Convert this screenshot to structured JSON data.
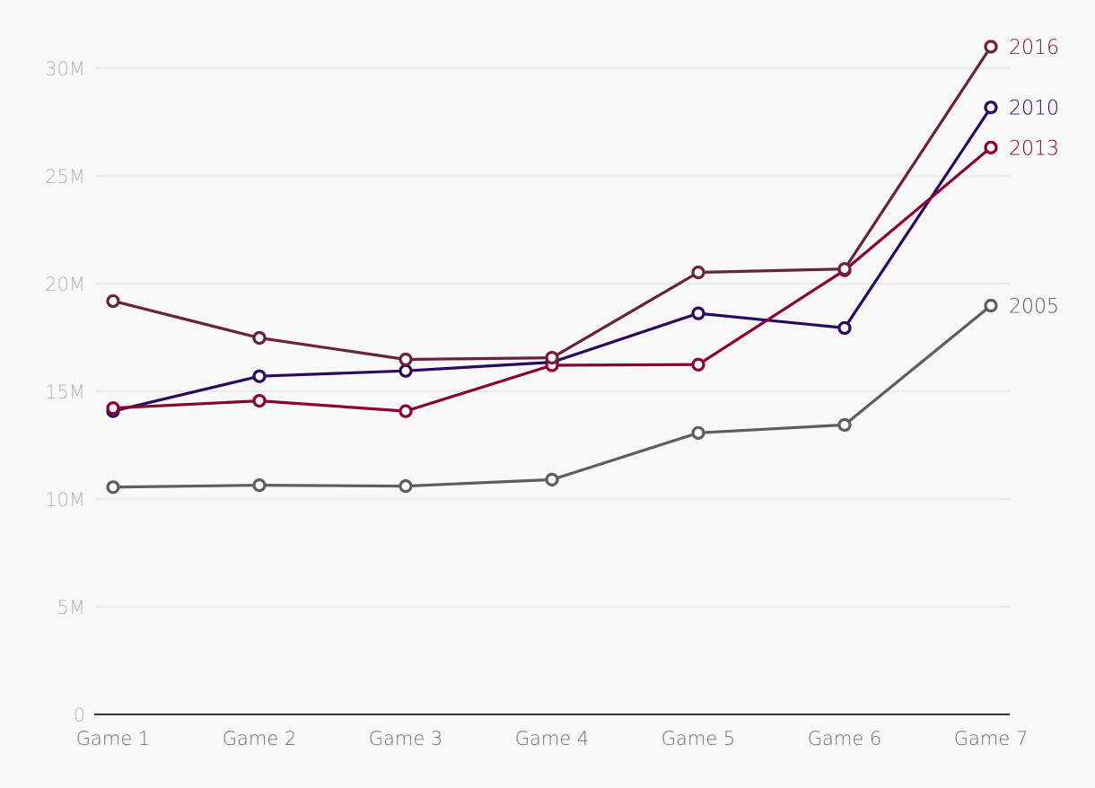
{
  "chart_data": {
    "type": "line",
    "categories": [
      "Game 1",
      "Game 2",
      "Game 3",
      "Game 4",
      "Game 5",
      "Game 6",
      "Game 7"
    ],
    "yticks": [
      "0",
      "5M",
      "10M",
      "15M",
      "20M",
      "25M",
      "30M"
    ],
    "ylim": [
      0,
      31500000
    ],
    "grid": true,
    "legend": "end-of-line labels",
    "series": [
      {
        "name": "2005",
        "color": "#5e5e5e",
        "values": [
          10550000,
          10640000,
          10600000,
          10900000,
          13070000,
          13440000,
          18980000
        ]
      },
      {
        "name": "2010",
        "color": "#2b0a5e",
        "values": [
          14080000,
          15700000,
          15950000,
          16350000,
          18620000,
          17940000,
          28180000
        ]
      },
      {
        "name": "2013",
        "color": "#8b0035",
        "values": [
          14220000,
          14560000,
          14080000,
          16210000,
          16240000,
          20620000,
          26320000
        ]
      },
      {
        "name": "2016",
        "color": "#6b2040",
        "values": [
          19190000,
          17480000,
          16480000,
          16560000,
          20520000,
          20680000,
          31000000
        ]
      }
    ]
  }
}
